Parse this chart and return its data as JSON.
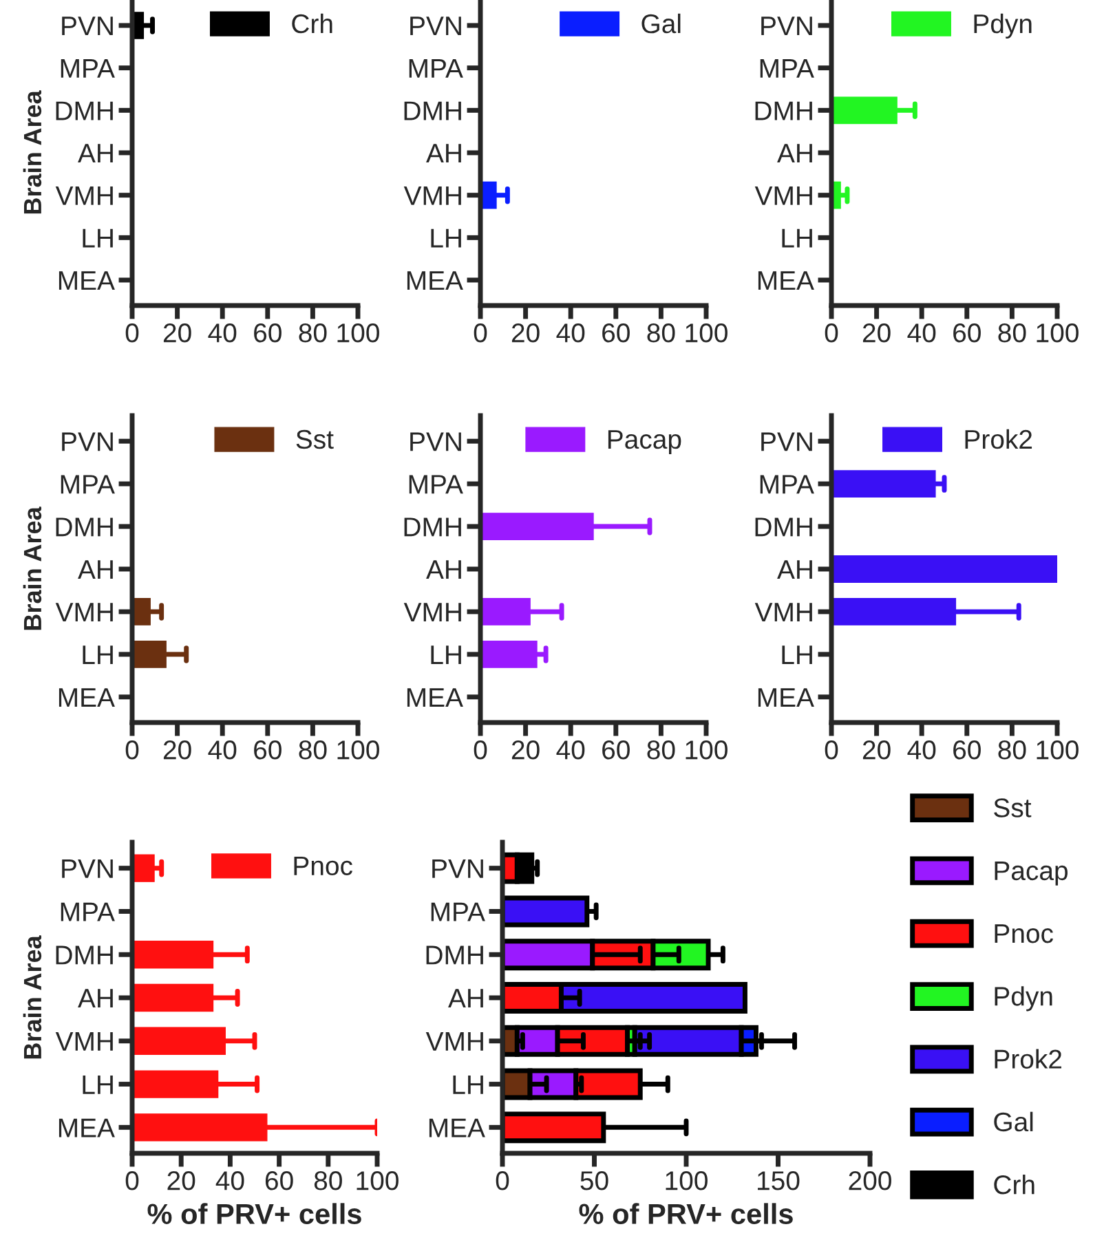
{
  "chart_data": [
    {
      "type": "bar",
      "orientation": "horizontal",
      "ylabel": "Brain Area",
      "categories": [
        "PVN",
        "MPA",
        "DMH",
        "AH",
        "VMH",
        "LH",
        "MEA"
      ],
      "xlim": [
        0,
        100
      ],
      "xticks": [
        0,
        20,
        40,
        60,
        80,
        100
      ],
      "legend": "top right",
      "series": [
        {
          "name": "Crh",
          "color": "#000000",
          "values": [
            5,
            null,
            null,
            null,
            null,
            null,
            null
          ],
          "errors": [
            [
              5,
              9
            ],
            null,
            null,
            null,
            null,
            null,
            null
          ]
        }
      ]
    },
    {
      "type": "bar",
      "orientation": "horizontal",
      "categories": [
        "PVN",
        "MPA",
        "DMH",
        "AH",
        "VMH",
        "LH",
        "MEA"
      ],
      "xlim": [
        0,
        100
      ],
      "xticks": [
        0,
        20,
        40,
        60,
        80,
        100
      ],
      "legend": "top right",
      "series": [
        {
          "name": "Gal",
          "color": "#0a1eff",
          "values": [
            null,
            null,
            null,
            null,
            7,
            null,
            null
          ],
          "errors": [
            null,
            null,
            null,
            null,
            [
              7,
              12
            ],
            null,
            null
          ]
        }
      ]
    },
    {
      "type": "bar",
      "orientation": "horizontal",
      "categories": [
        "PVN",
        "MPA",
        "DMH",
        "AH",
        "VMH",
        "LH",
        "MEA"
      ],
      "xlim": [
        0,
        100
      ],
      "xticks": [
        0,
        20,
        40,
        60,
        80,
        100
      ],
      "legend": "top right",
      "series": [
        {
          "name": "Pdyn",
          "color": "#22f522",
          "values": [
            null,
            null,
            29,
            null,
            4,
            null,
            null
          ],
          "errors": [
            null,
            null,
            [
              29,
              37
            ],
            null,
            [
              4,
              7
            ],
            null,
            null
          ]
        }
      ]
    },
    {
      "type": "bar",
      "orientation": "horizontal",
      "ylabel": "Brain Area",
      "categories": [
        "PVN",
        "MPA",
        "DMH",
        "AH",
        "VMH",
        "LH",
        "MEA"
      ],
      "xlim": [
        0,
        100
      ],
      "xticks": [
        0,
        20,
        40,
        60,
        80,
        100
      ],
      "legend": "top right",
      "series": [
        {
          "name": "Sst",
          "color": "#6b3010",
          "values": [
            null,
            null,
            null,
            null,
            8,
            15,
            null
          ],
          "errors": [
            null,
            null,
            null,
            null,
            [
              8,
              13
            ],
            [
              15,
              24
            ],
            null
          ]
        }
      ]
    },
    {
      "type": "bar",
      "orientation": "horizontal",
      "categories": [
        "PVN",
        "MPA",
        "DMH",
        "AH",
        "VMH",
        "LH",
        "MEA"
      ],
      "xlim": [
        0,
        100
      ],
      "xticks": [
        0,
        20,
        40,
        60,
        80,
        100
      ],
      "legend": "top right",
      "series": [
        {
          "name": "Pacap",
          "color": "#9a1aff",
          "values": [
            null,
            null,
            50,
            null,
            22,
            25,
            null
          ],
          "errors": [
            null,
            null,
            [
              50,
              75
            ],
            null,
            [
              22,
              36
            ],
            [
              25,
              29
            ],
            null
          ]
        }
      ]
    },
    {
      "type": "bar",
      "orientation": "horizontal",
      "categories": [
        "PVN",
        "MPA",
        "DMH",
        "AH",
        "VMH",
        "LH",
        "MEA"
      ],
      "xlim": [
        0,
        100
      ],
      "xticks": [
        0,
        20,
        40,
        60,
        80,
        100
      ],
      "legend": "top right",
      "series": [
        {
          "name": "Prok2",
          "color": "#3a10f5",
          "values": [
            null,
            46,
            null,
            100,
            55,
            null,
            null
          ],
          "errors": [
            null,
            [
              46,
              50
            ],
            null,
            [
              100,
              101
            ],
            [
              55,
              83
            ],
            null,
            null
          ]
        }
      ]
    },
    {
      "type": "bar",
      "orientation": "horizontal",
      "ylabel": "Brain Area",
      "xlabel": "% of PRV+ cells",
      "categories": [
        "PVN",
        "MPA",
        "DMH",
        "AH",
        "VMH",
        "LH",
        "MEA"
      ],
      "xlim": [
        0,
        100
      ],
      "xticks": [
        0,
        20,
        40,
        60,
        80,
        100
      ],
      "legend": "top right",
      "series": [
        {
          "name": "Pnoc",
          "color": "#ff1010",
          "values": [
            9,
            null,
            33,
            33,
            38,
            35,
            55
          ],
          "errors": [
            [
              9,
              12
            ],
            null,
            [
              33,
              47
            ],
            [
              33,
              43
            ],
            [
              38,
              50
            ],
            [
              35,
              51
            ],
            [
              55,
              100
            ]
          ]
        }
      ]
    },
    {
      "type": "bar",
      "orientation": "horizontal",
      "stacked": true,
      "xlabel": "% of PRV+ cells",
      "categories": [
        "PVN",
        "MPA",
        "DMH",
        "AH",
        "VMH",
        "LH",
        "MEA"
      ],
      "xlim": [
        0,
        200
      ],
      "xticks": [
        0,
        50,
        100,
        150,
        200
      ],
      "legend": "right",
      "series": [
        {
          "name": "Sst",
          "color": "#6b3010",
          "values": [
            null,
            null,
            null,
            null,
            8,
            15,
            null
          ],
          "errors": [
            null,
            null,
            null,
            null,
            [
              8,
              11
            ],
            [
              15,
              24
            ],
            null
          ]
        },
        {
          "name": "Pacap",
          "color": "#9a1aff",
          "values": [
            null,
            null,
            49,
            null,
            22,
            25,
            null
          ],
          "errors": [
            null,
            null,
            [
              49,
              75
            ],
            null,
            [
              30,
              44
            ],
            [
              40,
              43
            ],
            null
          ]
        },
        {
          "name": "Pnoc",
          "color": "#ff1010",
          "values": [
            8,
            null,
            33,
            32,
            38,
            35,
            55
          ],
          "errors": [
            null,
            null,
            [
              82,
              96
            ],
            [
              32,
              42
            ],
            [
              68,
              80
            ],
            [
              75,
              90
            ],
            [
              55,
              100
            ]
          ]
        },
        {
          "name": "Pdyn",
          "color": "#22f522",
          "values": [
            null,
            null,
            30,
            null,
            4,
            null,
            null
          ],
          "errors": [
            null,
            null,
            [
              112,
              120
            ],
            null,
            [
              72,
              75
            ],
            null,
            null
          ]
        },
        {
          "name": "Prok2",
          "color": "#3a10f5",
          "values": [
            null,
            46,
            null,
            100,
            58,
            null,
            null
          ],
          "errors": [
            null,
            [
              46,
              51
            ],
            null,
            null,
            [
              130,
              159
            ],
            null,
            null
          ]
        },
        {
          "name": "Gal",
          "color": "#0a1eff",
          "values": [
            null,
            null,
            null,
            null,
            8,
            null,
            null
          ],
          "errors": [
            null,
            null,
            null,
            null,
            [
              138,
              141
            ],
            null,
            null
          ]
        },
        {
          "name": "Crh",
          "color": "#000000",
          "values": [
            8,
            null,
            null,
            null,
            null,
            null,
            null
          ],
          "errors": [
            [
              16,
              19
            ],
            null,
            null,
            null,
            null,
            null,
            null
          ]
        }
      ]
    }
  ]
}
